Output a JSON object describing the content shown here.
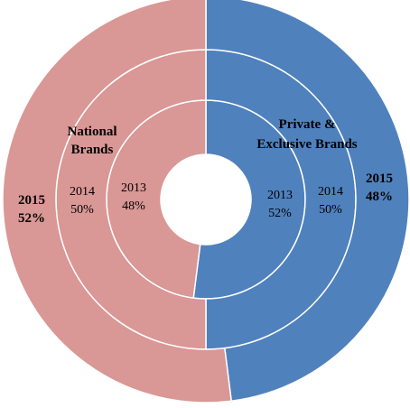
{
  "chart_data": {
    "type": "doughnut",
    "categories": [
      "National Brands",
      "Private & Exclusive Brands"
    ],
    "rings": [
      {
        "name": "2013",
        "values": [
          48,
          52
        ],
        "labels": [
          "48%",
          "52%"
        ],
        "bold": false
      },
      {
        "name": "2014",
        "values": [
          50,
          50
        ],
        "labels": [
          "50%",
          "50%"
        ],
        "bold": false
      },
      {
        "name": "2015",
        "values": [
          52,
          48
        ],
        "labels": [
          "52%",
          "48%"
        ],
        "bold": true
      }
    ],
    "colors": [
      "#d99795",
      "#4f81bd"
    ],
    "category_labels": {
      "national": [
        "National",
        "Brands"
      ],
      "private": [
        "Private &",
        "Exclusive Brands"
      ]
    }
  }
}
